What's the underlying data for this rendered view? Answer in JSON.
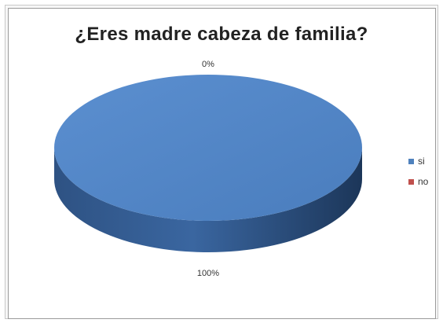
{
  "chart_data": {
    "type": "pie",
    "title": "¿Eres madre cabeza de familia?",
    "categories": [
      "si",
      "no"
    ],
    "values": [
      100,
      0
    ],
    "data_labels": [
      "100%",
      "0%"
    ],
    "colors": [
      "#4F81BD",
      "#C0504D"
    ],
    "legend_position": "right",
    "style": "3d"
  }
}
